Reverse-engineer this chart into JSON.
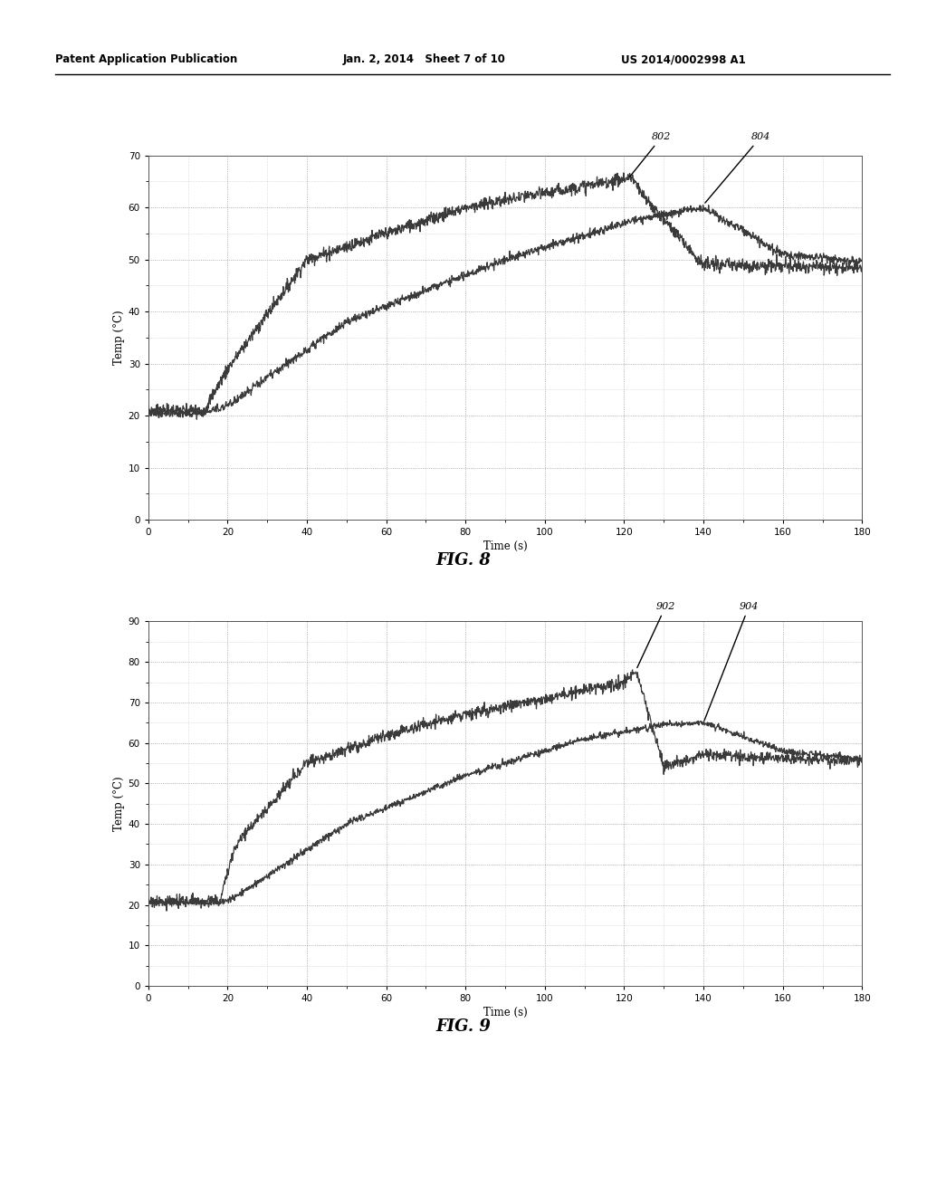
{
  "header_left": "Patent Application Publication",
  "header_mid": "Jan. 2, 2014   Sheet 7 of 10",
  "header_right": "US 2014/0002998 A1",
  "fig8_title": "FIG. 8",
  "fig9_title": "FIG. 9",
  "xlabel": "Time (s)",
  "ylabel": "Temp (°C)",
  "fig8_xlim": [
    0,
    180
  ],
  "fig8_ylim": [
    0,
    70
  ],
  "fig9_xlim": [
    0,
    180
  ],
  "fig9_ylim": [
    0,
    90
  ],
  "xticks": [
    0,
    20,
    40,
    60,
    80,
    100,
    120,
    140,
    160,
    180
  ],
  "fig8_yticks": [
    0,
    10,
    20,
    30,
    40,
    50,
    60,
    70
  ],
  "fig9_yticks": [
    0,
    10,
    20,
    30,
    40,
    50,
    60,
    70,
    80,
    90
  ],
  "line_color": "#3a3a3a",
  "background_color": "#ffffff",
  "grid_color": "#888888",
  "label802": "802",
  "label804": "804",
  "label902": "902",
  "label904": "904"
}
